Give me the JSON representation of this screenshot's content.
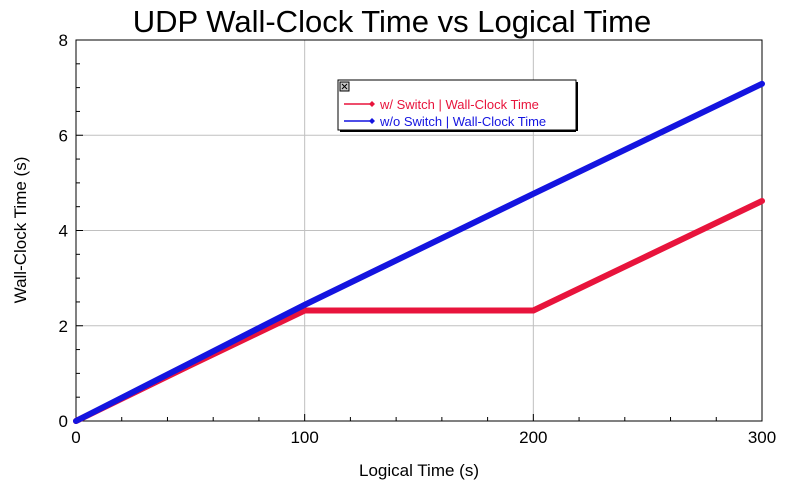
{
  "chart_data": {
    "type": "line",
    "title": "UDP Wall-Clock Time vs Logical Time",
    "xlabel": "Logical Time (s)",
    "ylabel": "Wall-Clock Time (s)",
    "xlim": [
      0,
      300
    ],
    "ylim": [
      0,
      8
    ],
    "x_ticks": [
      0,
      100,
      200,
      300
    ],
    "y_ticks": [
      0,
      2,
      4,
      6,
      8
    ],
    "grid": true,
    "legend_position": "top-center",
    "series": [
      {
        "name": "w/ Switch | Wall-Clock Time",
        "color": "#e8143c",
        "x": [
          0,
          50,
          100,
          200,
          250,
          300
        ],
        "y": [
          0,
          1.17,
          2.32,
          2.32,
          3.47,
          4.62
        ]
      },
      {
        "name": "w/o Switch | Wall-Clock Time",
        "color": "#1414e0",
        "x": [
          0,
          50,
          100,
          200,
          300
        ],
        "y": [
          0,
          1.22,
          2.44,
          4.77,
          7.08
        ]
      }
    ]
  }
}
